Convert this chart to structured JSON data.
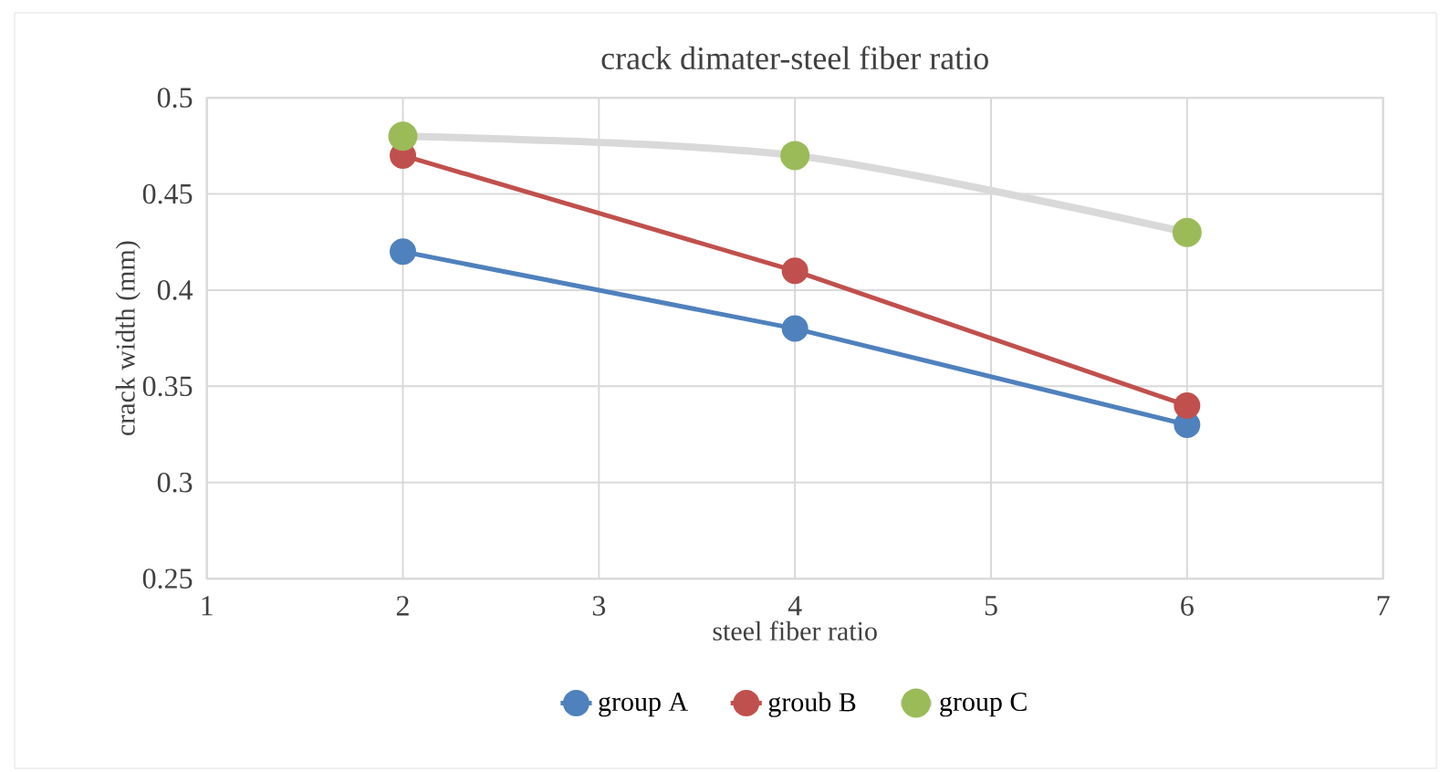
{
  "chart_data": {
    "type": "line",
    "title": "crack dimater-steel fiber ratio",
    "xlabel": "steel fiber ratio",
    "ylabel": "crack width (mm)",
    "x": [
      2,
      4,
      6
    ],
    "series": [
      {
        "name": "group A",
        "color": "#4f81bd",
        "values": [
          0.42,
          0.38,
          0.33
        ]
      },
      {
        "name": "groub B",
        "color": "#c0504d",
        "values": [
          0.47,
          0.41,
          0.34
        ]
      },
      {
        "name": "group C",
        "color": "#9bbb59",
        "values": [
          0.48,
          0.47,
          0.43
        ]
      }
    ],
    "xlim": [
      1,
      7
    ],
    "ylim": [
      0.25,
      0.5
    ],
    "xticks": [
      1,
      2,
      3,
      4,
      5,
      6,
      7
    ],
    "yticks": [
      0.25,
      0.3,
      0.35,
      0.4,
      0.45,
      0.5
    ],
    "grid": true,
    "legend": "bottom",
    "marker": "circle",
    "line_style": "solid"
  }
}
